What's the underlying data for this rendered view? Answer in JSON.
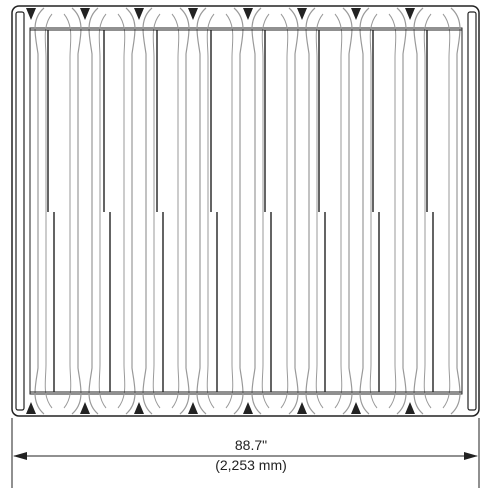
{
  "dimension": {
    "primary": "88.7\"",
    "secondary": "(2,253 mm)"
  },
  "colors": {
    "line": "#222222",
    "rib": "#9a9a9a",
    "background": "#ffffff"
  }
}
